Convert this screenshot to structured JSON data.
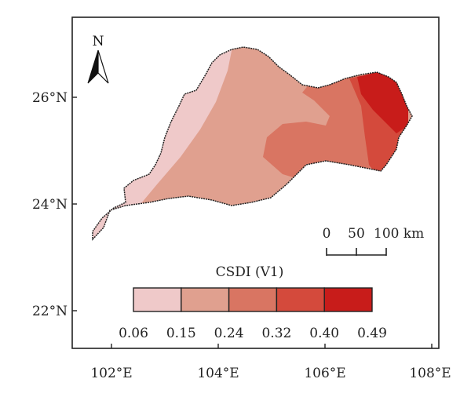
{
  "map": {
    "latitude_labels": [
      "26°N",
      "24°N",
      "22°N"
    ],
    "longitude_labels": [
      "102°E",
      "104°E",
      "106°E",
      "108°E"
    ]
  },
  "north_arrow": {
    "label": "N"
  },
  "scale_bar": {
    "labels": [
      "0",
      "50",
      "100 km"
    ]
  },
  "legend": {
    "title": "CSDI (V1)",
    "breaks": [
      "0.06",
      "0.15",
      "0.24",
      "0.32",
      "0.40",
      "0.49"
    ],
    "colors": [
      "#efc9c9",
      "#e0a08f",
      "#d97562",
      "#d44a3c",
      "#c81c1a"
    ]
  },
  "colors": {
    "region_low": "#efc9c9",
    "region_mid_low": "#e0a08f",
    "region_mid": "#d97562",
    "region_high": "#d44a3c",
    "region_max": "#c81c1a",
    "outline": "#222222",
    "frame": "#222222"
  }
}
